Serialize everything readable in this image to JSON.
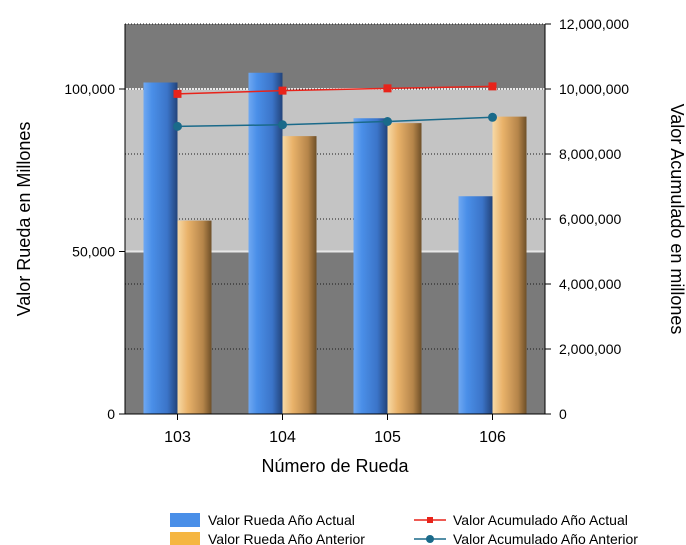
{
  "chart_data": {
    "type": "bar",
    "categories": [
      "103",
      "104",
      "105",
      "106"
    ],
    "xlabel": "Número de Rueda",
    "ylabel_left": "Valor Rueda en Millones",
    "ylabel_right": "Valor Acumulado en millones",
    "ylim_left": [
      0,
      120000
    ],
    "ylim_right": [
      0,
      12000000
    ],
    "left_ticks": [
      "0",
      "50,000",
      "100,000"
    ],
    "right_ticks": [
      "0",
      "2,000,000",
      "4,000,000",
      "6,000,000",
      "8,000,000",
      "10,000,000",
      "12,000,000"
    ],
    "highlight_band_left": [
      50000,
      100000
    ],
    "bars": [
      {
        "name": "Valor Rueda Año Actual",
        "color": "#4a8fe8",
        "values": [
          102000,
          105000,
          91000,
          67000
        ]
      },
      {
        "name": "Valor Rueda Año Anterior",
        "color": "#f5b642",
        "values": [
          59500,
          85500,
          89500,
          91500
        ]
      }
    ],
    "lines": [
      {
        "name": "Valor Acumulado Año Actual",
        "color": "#e8231a",
        "marker": "square",
        "values": [
          9850000,
          9950000,
          10020000,
          10080000
        ]
      },
      {
        "name": "Valor Acumulado Año Anterior",
        "color": "#1a6a8a",
        "marker": "circle",
        "values": [
          8850000,
          8900000,
          9000000,
          9130000
        ]
      }
    ],
    "legend_position": "bottom"
  }
}
